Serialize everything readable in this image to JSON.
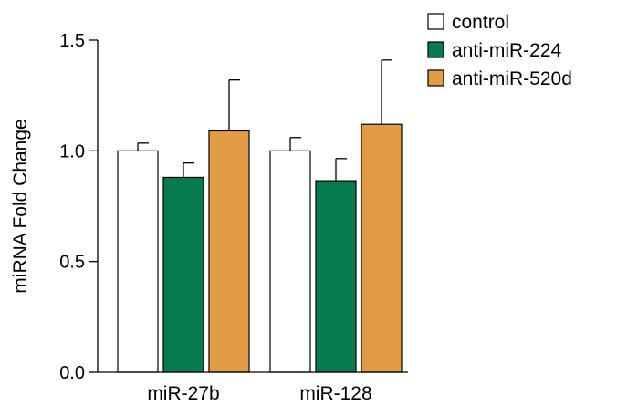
{
  "chart_data": {
    "type": "bar",
    "title": "",
    "xlabel": "",
    "ylabel": "miRNA Fold Change",
    "ylim": [
      0,
      1.5
    ],
    "yticks": [
      0.0,
      0.5,
      1.0,
      1.5
    ],
    "ytick_labels": [
      "0.0",
      "0.5",
      "1.0",
      "1.5"
    ],
    "categories": [
      "miR-27b",
      "miR-128"
    ],
    "series": [
      {
        "name": "control",
        "values": [
          1.0,
          1.0
        ],
        "errors": [
          0.035,
          0.06
        ],
        "color": "#ffffff"
      },
      {
        "name": "anti-miR-224",
        "values": [
          0.88,
          0.865
        ],
        "errors": [
          0.065,
          0.1
        ],
        "color": "#087a4f"
      },
      {
        "name": "anti-miR-520d",
        "values": [
          1.09,
          1.12
        ],
        "errors": [
          0.23,
          0.29
        ],
        "color": "#e39c46"
      }
    ],
    "legend_position": "top-right",
    "grid": false,
    "error_bars": "upper"
  }
}
